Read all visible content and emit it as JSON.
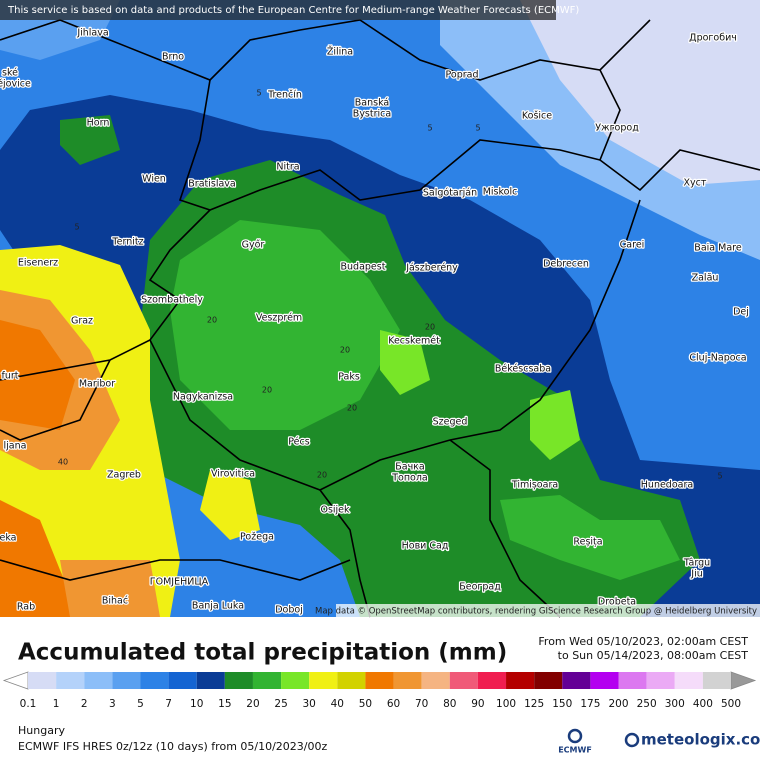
{
  "notice": "This service is based on data and products of the European Centre for Medium-range Weather Forecasts (ECMWF)",
  "map": {
    "attribution": "Map data © OpenStreetMap contributors, rendering GIScience Research Group @ Heidelberg University",
    "labels": [
      "Jihlava",
      "Brno",
      "Žilina",
      "Poprad",
      "Дрогобич",
      "ské",
      "ějovice",
      "Trenčín",
      "Banská",
      "Bystrica",
      "Košice",
      "Ужгород",
      "Horn",
      "Nitra",
      "Wien",
      "Bratislava",
      "Salgótarján",
      "Miskolc",
      "Хуст",
      "Ternitz",
      "Győr",
      "Carei",
      "Baia Mare",
      "Eisenerz",
      "Budapest",
      "Jászberény",
      "Debrecen",
      "Zalău",
      "Szombathely",
      "Graz",
      "Veszprém",
      "Dej",
      "Kecskemét",
      "Cluj-Napoca",
      "furt",
      "Maribor",
      "Paks",
      "Békéscsaba",
      "Nagykanizsa",
      "Szeged",
      "ljana",
      "Pécs",
      "Бачка",
      "Топола",
      "Zagreb",
      "Virovitica",
      "Timișoara",
      "Hunedoara",
      "Osijek",
      "eka",
      "Požega",
      "Нови Сад",
      "Reșița",
      "Târgu",
      "Jiu",
      "ГОМЈЕНИЦА",
      "Bihać",
      "Banja Luka",
      "Doboj",
      "Београд",
      "Drobeta",
      "Rab"
    ],
    "contour_labels": [
      "5",
      "5",
      "5",
      "5",
      "20",
      "20",
      "20",
      "20",
      "20",
      "20",
      "40",
      "5"
    ]
  },
  "title": "Accumulated total precipitation (mm)",
  "period": [
    "From Wed 05/10/2023, 02:00am CEST",
    "to Sun 05/14/2023, 08:00am CEST"
  ],
  "scale": {
    "values": [
      0.1,
      1,
      2,
      3,
      5,
      7,
      10,
      15,
      20,
      25,
      30,
      40,
      50,
      60,
      70,
      80,
      90,
      100,
      125,
      150,
      175,
      200,
      250,
      300,
      400,
      500
    ],
    "colors": [
      "#d6dcf5",
      "#b4d2fa",
      "#8cbef8",
      "#5aa0f0",
      "#2d82e6",
      "#1464d2",
      "#0a3c96",
      "#1e8c28",
      "#32b432",
      "#78e628",
      "#f0f014",
      "#d2d200",
      "#f07800",
      "#f09632",
      "#f5b482",
      "#f05a78",
      "#f01e50",
      "#b40000",
      "#820000",
      "#640096",
      "#b400f0",
      "#dc78f0",
      "#ebaaf5",
      "#f5dcfa",
      "#d2d2d2"
    ]
  },
  "footer": {
    "region": "Hungary",
    "model": "ECMWF IFS HRES 0z/12z (10 days) from 05/10/2023/00z",
    "logos": [
      "ECMWF",
      "meteologix.com"
    ]
  }
}
